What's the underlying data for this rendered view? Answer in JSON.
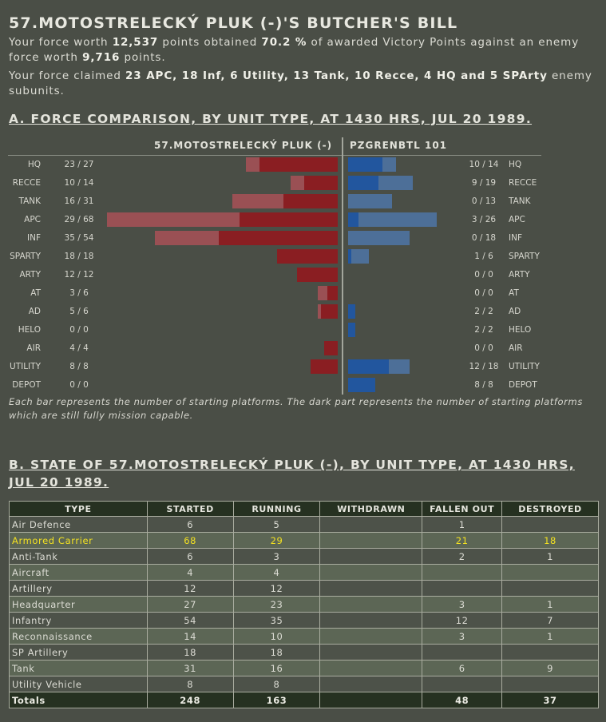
{
  "title": "57.MOTOSTRELECKÝ PLUK (-)'S BUTCHER'S BILL",
  "summary": {
    "line1_pre": "Your force worth ",
    "line1_points": "12,537",
    "line1_mid": " points obtained ",
    "line1_pct": "70.2 %",
    "line1_mid2": " of awarded Victory Points against an enemy force worth ",
    "line1_enemy": "9,716",
    "line1_post": " points.",
    "line2_pre": "Your force claimed ",
    "line2_claims": "23 APC, 18 Inf, 6 Utility, 13 Tank, 10 Recce, 4 HQ and 5 SPArty",
    "line2_post": " enemy subunits."
  },
  "section_a": {
    "heading": "A. FORCE COMPARISON, BY UNIT TYPE, AT 1430 HRS, JUL 20 1989.",
    "left_force": "57.MOTOSTRELECKÝ PLUK (-)",
    "right_force": "PZGRENBTL 101",
    "note": "Each bar represents the number of starting platforms. The dark part represents the number of starting platforms which are still fully mission capable."
  },
  "chart_data": {
    "type": "bar",
    "layout": "diverging",
    "categories": [
      "HQ",
      "RECCE",
      "TANK",
      "APC",
      "INF",
      "SPARTY",
      "ARTY",
      "AT",
      "AD",
      "HELO",
      "AIR",
      "UTILITY",
      "DEPOT"
    ],
    "series": [
      {
        "name": "57.MOTOSTRELECKÝ PLUK (-)",
        "side": "left",
        "running": [
          23,
          10,
          16,
          29,
          35,
          18,
          12,
          3,
          5,
          0,
          4,
          8,
          0
        ],
        "started": [
          27,
          14,
          31,
          68,
          54,
          18,
          12,
          6,
          6,
          0,
          4,
          8,
          0
        ],
        "labels": [
          "23 / 27",
          "10 / 14",
          "16 / 31",
          "29 / 68",
          "35 / 54",
          "18 / 18",
          "12 / 12",
          "3 / 6",
          "5 / 6",
          "0 / 0",
          "4 / 4",
          "8 / 8",
          "0 / 0"
        ]
      },
      {
        "name": "PZGRENBTL 101",
        "side": "right",
        "running": [
          10,
          9,
          0,
          3,
          0,
          1,
          0,
          0,
          2,
          2,
          0,
          12,
          8
        ],
        "started": [
          14,
          19,
          13,
          26,
          18,
          6,
          0,
          0,
          2,
          2,
          0,
          18,
          8
        ],
        "labels": [
          "10 / 14",
          "9 / 19",
          "0 / 13",
          "3 / 26",
          "0 / 18",
          "1 / 6",
          "0 / 0",
          "0 / 0",
          "2 / 2",
          "2 / 2",
          "0 / 0",
          "12 / 18",
          "8 / 8"
        ]
      }
    ],
    "colors": {
      "left_dark": "#8a1e22",
      "left_light": "#9a5054",
      "right_dark": "#22569e",
      "right_light": "#4d6f98"
    }
  },
  "section_b": {
    "heading": "B. STATE OF 57.MOTOSTRELECKÝ PLUK (-), BY UNIT TYPE, AT 1430 HRS, JUL 20 1989.",
    "columns": [
      "TYPE",
      "STARTED",
      "RUNNING",
      "WITHDRAWN",
      "FALLEN OUT",
      "DESTROYED"
    ],
    "rows": [
      [
        "Air Defence",
        "6",
        "5",
        "",
        "1",
        ""
      ],
      [
        "Armored Carrier",
        "68",
        "29",
        "",
        "21",
        "18"
      ],
      [
        "Anti-Tank",
        "6",
        "3",
        "",
        "2",
        "1"
      ],
      [
        "Aircraft",
        "4",
        "4",
        "",
        "",
        ""
      ],
      [
        "Artillery",
        "12",
        "12",
        "",
        "",
        ""
      ],
      [
        "Headquarter",
        "27",
        "23",
        "",
        "3",
        "1"
      ],
      [
        "Infantry",
        "54",
        "35",
        "",
        "12",
        "7"
      ],
      [
        "Reconnaissance",
        "14",
        "10",
        "",
        "3",
        "1"
      ],
      [
        "SP Artillery",
        "18",
        "18",
        "",
        "",
        ""
      ],
      [
        "Tank",
        "31",
        "16",
        "",
        "6",
        "9"
      ],
      [
        "Utility Vehicle",
        "8",
        "8",
        "",
        "",
        ""
      ]
    ],
    "highlight_row": "Armored Carrier",
    "highlight_color": "#f2e022",
    "totals": [
      "Totals",
      "248",
      "163",
      "",
      "48",
      "37"
    ]
  }
}
